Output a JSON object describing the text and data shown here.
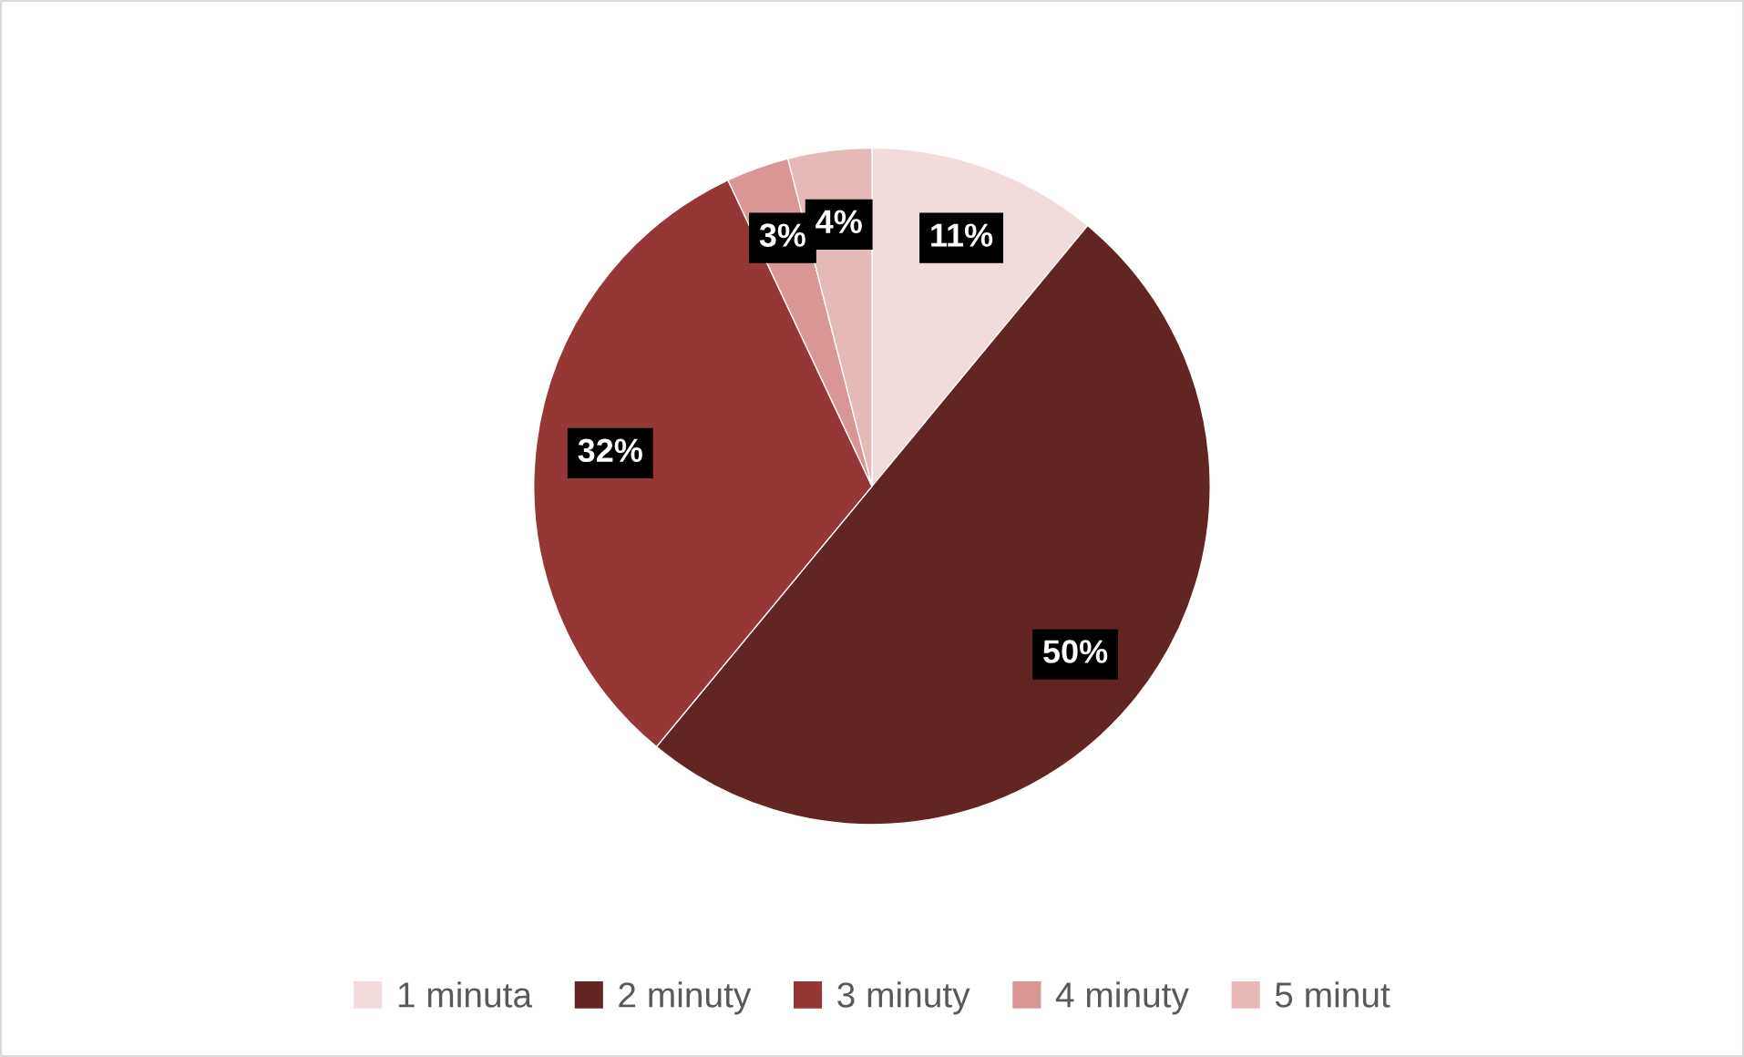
{
  "chart_data": {
    "type": "pie",
    "categories": [
      "1 minuta",
      "2 minuty",
      "3 minuty",
      "4 minuty",
      "5 minut"
    ],
    "values": [
      11,
      50,
      32,
      3,
      4
    ],
    "colors": [
      "#f2dcdb",
      "#632523",
      "#953735",
      "#d99694",
      "#e6b9b8"
    ],
    "value_labels": [
      "11%",
      "50%",
      "32%",
      "3%",
      "4%"
    ],
    "legend": "bottom"
  }
}
